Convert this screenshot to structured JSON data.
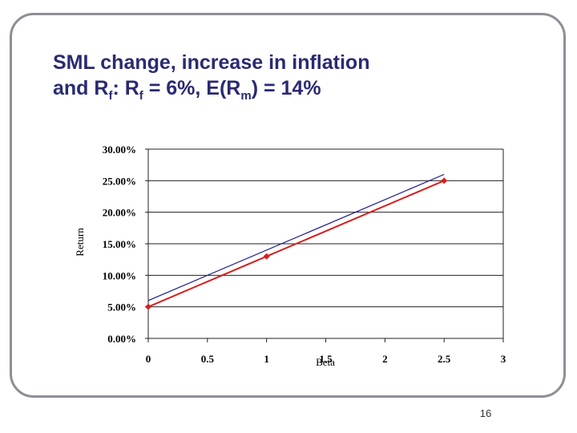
{
  "slide": {
    "title_line1": "SML change, increase in inflation",
    "title_line2_parts": [
      "and R",
      "f",
      ": R",
      "f",
      " = 6%, E(R",
      "m",
      ") = 14%"
    ],
    "page_number": "16"
  },
  "chart_data": {
    "type": "line",
    "xlabel": "Beta",
    "ylabel": "Return",
    "xlim": [
      0,
      3
    ],
    "ylim": [
      0,
      0.3
    ],
    "x_ticks": [
      "0",
      "0.5",
      "1",
      "1.5",
      "2",
      "2.5",
      "3"
    ],
    "y_ticks": [
      "0.00%",
      "5.00%",
      "10.00%",
      "15.00%",
      "20.00%",
      "25.00%",
      "30.00%"
    ],
    "grid": "horizontal",
    "series": [
      {
        "color": "#1a1a8c",
        "marker": "none",
        "x": [
          0,
          2.5
        ],
        "y": [
          0.06,
          0.26
        ]
      },
      {
        "color": "#d42020",
        "marker": "diamond",
        "x": [
          0,
          1,
          2.5
        ],
        "y": [
          0.05,
          0.13,
          0.25
        ]
      }
    ]
  }
}
